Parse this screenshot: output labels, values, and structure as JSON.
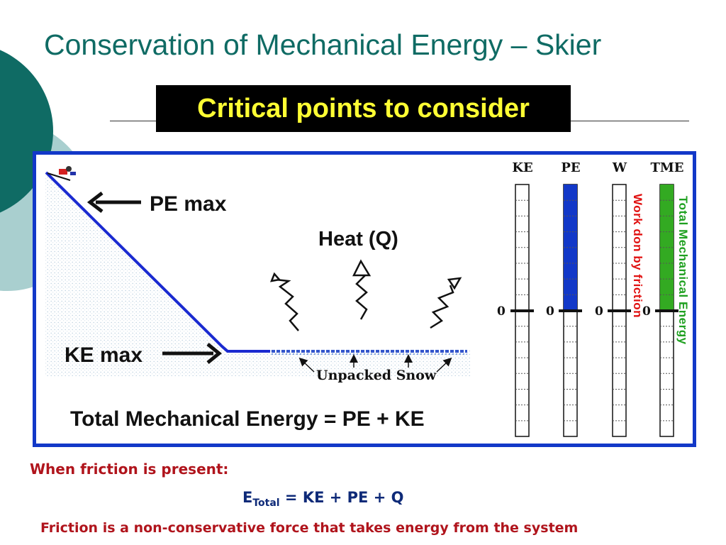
{
  "slide": {
    "title": "Conservation of Mechanical Energy – Skier",
    "banner": "Critical points to consider",
    "colors": {
      "title": "#0f6b64",
      "banner_bg": "#000000",
      "banner_text": "#ffff33",
      "panel_border": "#1238c8",
      "pe_bar": "#1238c8",
      "tme_bar": "#33aa22",
      "work_label": "#e01010",
      "tme_label": "#1fa020",
      "bottom_red": "#b0141c",
      "bottom_navy": "#0e2a78"
    }
  },
  "diagram": {
    "pe_max_label": "PE max",
    "ke_max_label": "KE max",
    "heat_label": "Heat (Q)",
    "snow_label": "Unpacked Snow",
    "equation": "Total Mechanical Energy = PE + KE",
    "bars": [
      {
        "label": "KE",
        "zero": "0",
        "fill": "none",
        "level": 0
      },
      {
        "label": "PE",
        "zero": "0",
        "fill": "#1238c8",
        "level": 1
      },
      {
        "label": "W",
        "zero": "0",
        "fill": "none",
        "level": 0
      },
      {
        "label": "TME",
        "zero": "0",
        "fill": "#33aa22",
        "level": 1
      }
    ],
    "work_label": "Work don by friction",
    "tme_label": "Total Mechanical Energy"
  },
  "footer": {
    "friction_present": "When friction is present:",
    "formula_e": "E",
    "formula_sub": "Total",
    "formula_rest": " = KE + PE + Q",
    "statement": "Friction is a non-conservative force that takes energy from the system"
  }
}
